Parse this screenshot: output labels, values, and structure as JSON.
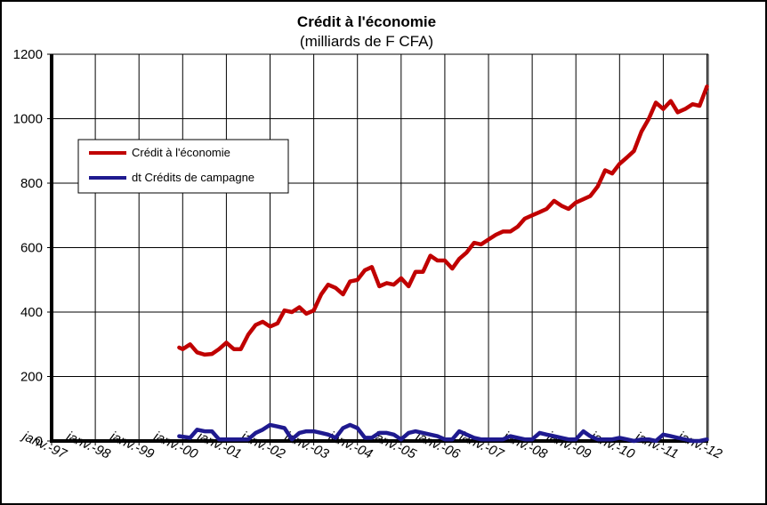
{
  "chart_data": {
    "type": "line",
    "title": "Crédit à l'économie",
    "subtitle": "(milliards de F CFA)",
    "xlabel": "",
    "ylabel": "",
    "ylim": [
      0,
      1200
    ],
    "yticks": [
      "0",
      "200",
      "400",
      "600",
      "800",
      "1000",
      "1200"
    ],
    "xticks": [
      "janv.-97",
      "janv.-98",
      "janv.-99",
      "janv.-00",
      "janv.-01",
      "janv.-02",
      "janv.-03",
      "janv.-04",
      "janv.-05",
      "janv.-06",
      "janv.-07",
      "janv.-08",
      "janv.-09",
      "janv.-10",
      "janv.-11",
      "janv.-12"
    ],
    "grid": true,
    "legend_position": "upper-left",
    "series": [
      {
        "name": "Crédit à l'économie",
        "color": "#c00000",
        "x": [
          1999.92,
          2000.0,
          2000.17,
          2000.33,
          2000.5,
          2000.67,
          2000.83,
          2001.0,
          2001.17,
          2001.33,
          2001.5,
          2001.67,
          2001.83,
          2002.0,
          2002.17,
          2002.33,
          2002.5,
          2002.67,
          2002.83,
          2003.0,
          2003.17,
          2003.33,
          2003.5,
          2003.67,
          2003.83,
          2004.0,
          2004.17,
          2004.33,
          2004.5,
          2004.67,
          2004.83,
          2005.0,
          2005.17,
          2005.33,
          2005.5,
          2005.67,
          2005.83,
          2006.0,
          2006.17,
          2006.33,
          2006.5,
          2006.67,
          2006.83,
          2007.0,
          2007.17,
          2007.33,
          2007.5,
          2007.67,
          2007.83,
          2008.0,
          2008.17,
          2008.33,
          2008.5,
          2008.67,
          2008.83,
          2009.0,
          2009.17,
          2009.33,
          2009.5,
          2009.67,
          2009.83,
          2010.0,
          2010.17,
          2010.33,
          2010.5,
          2010.67,
          2010.83,
          2011.0,
          2011.17,
          2011.33,
          2011.5,
          2011.67,
          2011.83,
          2012.0
        ],
        "values": [
          290,
          285,
          300,
          275,
          268,
          270,
          285,
          305,
          285,
          285,
          330,
          360,
          370,
          355,
          365,
          405,
          400,
          415,
          395,
          405,
          455,
          485,
          475,
          455,
          495,
          500,
          530,
          540,
          480,
          490,
          485,
          505,
          480,
          525,
          525,
          575,
          560,
          560,
          535,
          565,
          585,
          615,
          610,
          625,
          640,
          650,
          650,
          665,
          690,
          700,
          710,
          720,
          745,
          730,
          720,
          740,
          750,
          760,
          790,
          840,
          830,
          860,
          880,
          900,
          960,
          1000,
          1050,
          1030,
          1055,
          1020,
          1030,
          1045,
          1040,
          1100
        ]
      },
      {
        "name": "dt Crédits de campagne",
        "color": "#1f1a8f",
        "x": [
          1999.92,
          2000.17,
          2000.33,
          2000.5,
          2000.67,
          2000.83,
          2001.0,
          2001.17,
          2001.33,
          2001.5,
          2001.67,
          2001.83,
          2002.0,
          2002.17,
          2002.33,
          2002.5,
          2002.67,
          2002.83,
          2003.0,
          2003.17,
          2003.33,
          2003.5,
          2003.67,
          2003.83,
          2004.0,
          2004.17,
          2004.33,
          2004.5,
          2004.67,
          2004.83,
          2005.0,
          2005.17,
          2005.33,
          2005.5,
          2005.67,
          2005.83,
          2006.0,
          2006.17,
          2006.33,
          2006.5,
          2006.67,
          2006.83,
          2007.0,
          2007.17,
          2007.33,
          2007.5,
          2007.67,
          2007.83,
          2008.0,
          2008.17,
          2008.33,
          2008.5,
          2008.67,
          2008.83,
          2009.0,
          2009.17,
          2009.33,
          2009.5,
          2009.67,
          2009.83,
          2010.0,
          2010.17,
          2010.33,
          2010.5,
          2010.67,
          2010.83,
          2011.0,
          2011.17,
          2011.33,
          2011.5,
          2011.67,
          2011.83,
          2012.0
        ],
        "values": [
          15,
          10,
          35,
          30,
          30,
          5,
          5,
          5,
          5,
          5,
          25,
          35,
          50,
          45,
          40,
          5,
          25,
          30,
          30,
          25,
          20,
          10,
          40,
          50,
          40,
          10,
          10,
          25,
          25,
          20,
          5,
          25,
          30,
          25,
          20,
          15,
          5,
          5,
          30,
          20,
          10,
          5,
          5,
          5,
          5,
          15,
          10,
          5,
          5,
          25,
          20,
          15,
          10,
          5,
          5,
          30,
          15,
          5,
          5,
          5,
          10,
          5,
          0,
          5,
          5,
          0,
          20,
          15,
          10,
          5,
          0,
          0,
          5
        ]
      }
    ]
  }
}
